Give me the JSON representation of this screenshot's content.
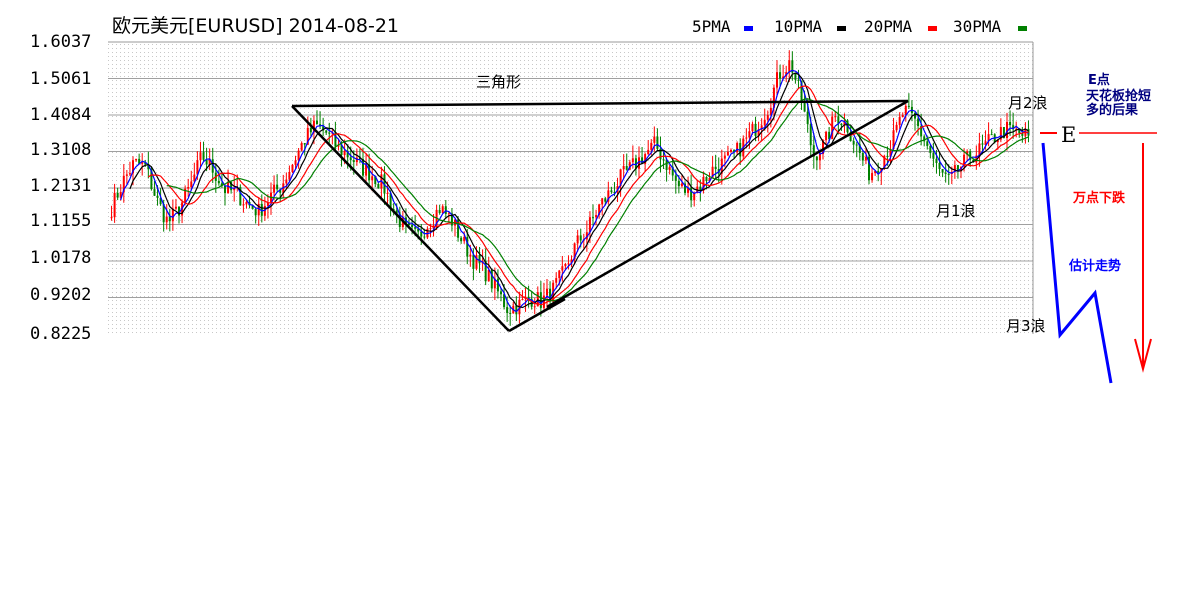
{
  "chart_data": {
    "type": "candlestick",
    "title": "欧元美元[EURUSD] 2014-08-21",
    "y_tick_labels": [
      "1.6037",
      "1.5061",
      "1.4084",
      "1.3108",
      "1.2131",
      "1.1155",
      "1.0178",
      "0.9202",
      "0.8225"
    ],
    "ylim": [
      0.8225,
      1.6037
    ],
    "grid": true,
    "legend_position": "top-right",
    "legend": [
      {
        "label": "5PMA",
        "color": "#0000ff"
      },
      {
        "label": "10PMA",
        "color": "#000000"
      },
      {
        "label": "20PMA",
        "color": "#ff0000"
      },
      {
        "label": "30PMA",
        "color": "#008000"
      }
    ],
    "up_color": "#ff0000",
    "down_color": "#008000",
    "price_path": [
      [
        0,
        1.16
      ],
      [
        2,
        1.23
      ],
      [
        4,
        1.28
      ],
      [
        6,
        1.27
      ],
      [
        8,
        1.18
      ],
      [
        10,
        1.12
      ],
      [
        12,
        1.16
      ],
      [
        14,
        1.22
      ],
      [
        16,
        1.3
      ],
      [
        18,
        1.26
      ],
      [
        20,
        1.21
      ],
      [
        22,
        1.2
      ],
      [
        24,
        1.17
      ],
      [
        26,
        1.15
      ],
      [
        28,
        1.19
      ],
      [
        30,
        1.22
      ],
      [
        32,
        1.28
      ],
      [
        34,
        1.34
      ],
      [
        36,
        1.38
      ],
      [
        38,
        1.36
      ],
      [
        40,
        1.32
      ],
      [
        42,
        1.3
      ],
      [
        44,
        1.27
      ],
      [
        46,
        1.25
      ],
      [
        48,
        1.22
      ],
      [
        50,
        1.15
      ],
      [
        52,
        1.1
      ],
      [
        54,
        1.08
      ],
      [
        56,
        1.12
      ],
      [
        58,
        1.16
      ],
      [
        60,
        1.13
      ],
      [
        62,
        1.07
      ],
      [
        64,
        1.02
      ],
      [
        66,
        0.99
      ],
      [
        68,
        0.94
      ],
      [
        70,
        0.89
      ],
      [
        72,
        0.9
      ],
      [
        74,
        0.92
      ],
      [
        76,
        0.91
      ],
      [
        78,
        0.94
      ],
      [
        80,
        0.99
      ],
      [
        82,
        1.06
      ],
      [
        84,
        1.1
      ],
      [
        86,
        1.16
      ],
      [
        88,
        1.2
      ],
      [
        90,
        1.24
      ],
      [
        92,
        1.27
      ],
      [
        94,
        1.3
      ],
      [
        96,
        1.33
      ],
      [
        98,
        1.28
      ],
      [
        100,
        1.22
      ],
      [
        102,
        1.2
      ],
      [
        104,
        1.22
      ],
      [
        106,
        1.26
      ],
      [
        108,
        1.28
      ],
      [
        110,
        1.3
      ],
      [
        112,
        1.34
      ],
      [
        114,
        1.38
      ],
      [
        116,
        1.43
      ],
      [
        118,
        1.52
      ],
      [
        120,
        1.55
      ],
      [
        122,
        1.44
      ],
      [
        124,
        1.3
      ],
      [
        126,
        1.33
      ],
      [
        128,
        1.41
      ],
      [
        130,
        1.38
      ],
      [
        132,
        1.31
      ],
      [
        134,
        1.25
      ],
      [
        136,
        1.29
      ],
      [
        138,
        1.34
      ],
      [
        140,
        1.42
      ],
      [
        142,
        1.39
      ],
      [
        144,
        1.33
      ],
      [
        146,
        1.26
      ],
      [
        148,
        1.23
      ],
      [
        150,
        1.27
      ],
      [
        152,
        1.3
      ],
      [
        154,
        1.32
      ],
      [
        156,
        1.35
      ],
      [
        158,
        1.37
      ],
      [
        160,
        1.36
      ],
      [
        162,
        1.35
      ]
    ],
    "annotations": [
      {
        "text": "三角形",
        "color": "#000000"
      },
      {
        "text": "月2浪",
        "color": "#000000"
      },
      {
        "text": "月1浪",
        "color": "#000000"
      },
      {
        "text": "月3浪",
        "color": "#000000"
      },
      {
        "text": "E",
        "color": "#000000"
      },
      {
        "text": "E点",
        "color": "#000080"
      },
      {
        "text": "天花板抢短",
        "color": "#000080"
      },
      {
        "text": "多的后果",
        "color": "#000080"
      },
      {
        "text": "万点下跌",
        "color": "#ff0000"
      },
      {
        "text": "估计走势",
        "color": "#0000ff"
      }
    ],
    "drawn_lines_color": "#000000",
    "forecast_color": "#0000ff",
    "arrow_color": "#ff0000"
  }
}
